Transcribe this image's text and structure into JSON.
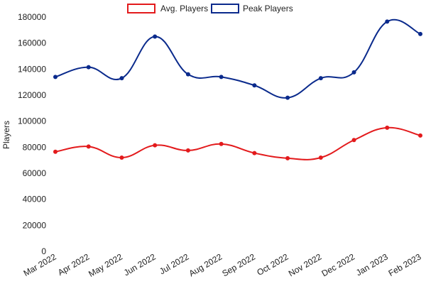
{
  "chart_data": {
    "type": "line",
    "title": "",
    "xlabel": "",
    "ylabel": "Players",
    "ylim": [
      0,
      180000
    ],
    "yticks": [
      "0",
      "20000",
      "40000",
      "60000",
      "80000",
      "100000",
      "120000",
      "140000",
      "160000",
      "180000"
    ],
    "grid": false,
    "legend_position": "top-center",
    "categories": [
      "Mar 2022",
      "Apr 2022",
      "May 2022",
      "Jun 2022",
      "Jul 2022",
      "Aug 2022",
      "Sep 2022",
      "Oct 2022",
      "Nov 2022",
      "Dec 2022",
      "Jan 2023",
      "Feb 2023"
    ],
    "series": [
      {
        "name": "Avg. Players",
        "color": "#e31a1c",
        "values": [
          76500,
          80500,
          72000,
          81500,
          77500,
          82500,
          75500,
          71500,
          72000,
          85500,
          95000,
          89000
        ]
      },
      {
        "name": "Peak Players",
        "color": "#0a2a8c",
        "values": [
          134000,
          141500,
          133000,
          165000,
          136000,
          134000,
          127500,
          118000,
          133000,
          137500,
          176500,
          167000
        ]
      }
    ]
  }
}
